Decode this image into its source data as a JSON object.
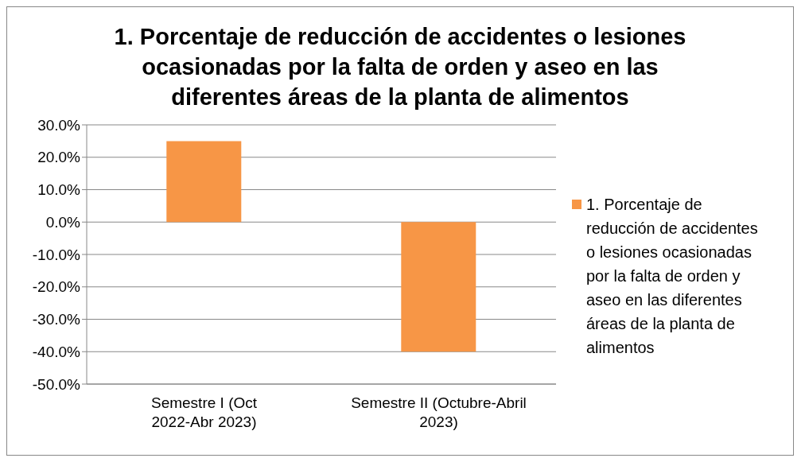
{
  "chart_data": {
    "type": "bar",
    "title": "1. Porcentaje de reducción de accidentes o lesiones ocasionadas por la falta de orden y aseo en las diferentes áreas de la planta de alimentos",
    "categories": [
      "Semestre I (Oct 2022-Abr 2023)",
      "Semestre II (Octubre-Abril 2023)"
    ],
    "series": [
      {
        "name": "1. Porcentaje de reducción de accidentes o lesiones ocasionadas por la falta de orden y aseo en las diferentes áreas de la planta de alimentos",
        "color": "#f79646",
        "values": [
          25,
          -40
        ]
      }
    ],
    "ylim": [
      -50,
      30
    ],
    "yticks": [
      {
        "value": -50,
        "label": "-50.0%"
      },
      {
        "value": -40,
        "label": "-40.0%"
      },
      {
        "value": -30,
        "label": "-30.0%"
      },
      {
        "value": -20,
        "label": "-20.0%"
      },
      {
        "value": -10,
        "label": "-10.0%"
      },
      {
        "value": 0,
        "label": "0.0%"
      },
      {
        "value": 10,
        "label": "10.0%"
      },
      {
        "value": 20,
        "label": "20.0%"
      },
      {
        "value": 30,
        "label": "30.0%"
      }
    ],
    "grid": "y",
    "legend": "right"
  }
}
